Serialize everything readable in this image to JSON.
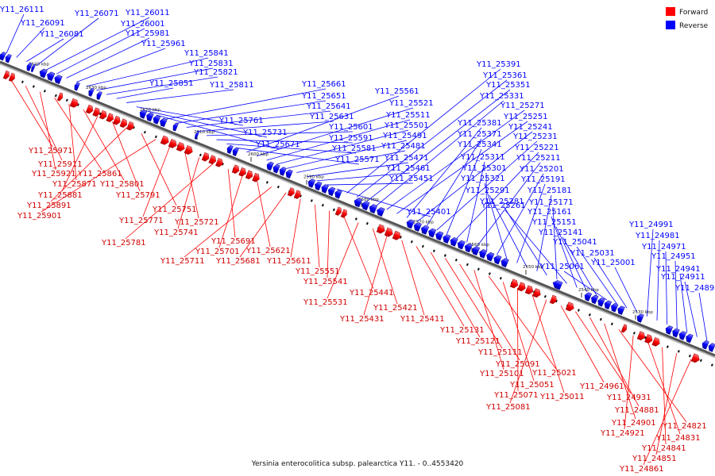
{
  "diagram": {
    "title": "Yersinia enterocolitica subsp. palearctica Y11. - 0..4553420",
    "legend": [
      {
        "label": "Forward",
        "color": "#ff0000"
      },
      {
        "label": "Reverse",
        "color": "#0000ff"
      }
    ],
    "kbp_ticks": [
      "2640 kbp",
      "2630 kbp",
      "2620 kbp",
      "2610 kbp",
      "2600 kbp",
      "2590 kbp",
      "2580 kbp",
      "2570 kbp",
      "2560 kbp",
      "2550 kbp",
      "2540 kbp",
      "2530 kbp"
    ],
    "reverse_genes": [
      "Y11_26111",
      "Y11_26091",
      "Y11_26081",
      "Y11_26071",
      "Y11_26011",
      "Y11_26001",
      "Y11_25981",
      "Y11_25961",
      "Y11_25841",
      "Y11_25831",
      "Y11_25821",
      "Y11_25851",
      "Y11_25811",
      "Y11_25761",
      "Y11_25731",
      "Y11_25671",
      "Y11_25661",
      "Y11_25651",
      "Y11_25641",
      "Y11_25631",
      "Y11_25601",
      "Y11_25591",
      "Y11_25581",
      "Y11_25571",
      "Y11_25561",
      "Y11_25521",
      "Y11_25511",
      "Y11_25501",
      "Y11_25491",
      "Y11_25481",
      "Y11_25471",
      "Y11_25461",
      "Y11_25451",
      "Y11_25401",
      "Y11_25391",
      "Y11_25361",
      "Y11_25351",
      "Y11_25331",
      "Y11_25271",
      "Y11_25251",
      "Y11_25381",
      "Y11_25241",
      "Y11_25371",
      "Y11_25231",
      "Y11_25341",
      "Y11_25221",
      "Y11_25311",
      "Y11_25211",
      "Y11_25301",
      "Y11_25201",
      "Y11_25321",
      "Y11_25191",
      "Y11_25291",
      "Y11_25181",
      "Y11_25281",
      "Y11_25171",
      "Y11_25261",
      "Y11_25161",
      "Y11_25151",
      "Y11_25141",
      "Y11_25061",
      "Y11_25041",
      "Y11_25031",
      "Y11_25001",
      "Y11_24991",
      "Y11_24981",
      "Y11_24971",
      "Y11_24951",
      "Y11_24941",
      "Y11_24911",
      "Y11_24891"
    ],
    "forward_genes": [
      "Y11_25971",
      "Y11_25911",
      "Y11_25921",
      "Y11_25861",
      "Y11_25871",
      "Y11_25801",
      "Y11_25881",
      "Y11_25791",
      "Y11_25891",
      "Y11_25751",
      "Y11_25901",
      "Y11_25771",
      "Y11_25721",
      "Y11_25741",
      "Y11_25781",
      "Y11_25691",
      "Y11_25701",
      "Y11_25621",
      "Y11_25711",
      "Y11_25681",
      "Y11_25611",
      "Y11_25551",
      "Y11_25541",
      "Y11_25441",
      "Y11_25531",
      "Y11_25421",
      "Y11_25431",
      "Y11_25411",
      "Y11_25131",
      "Y11_25121",
      "Y11_25111",
      "Y11_25091",
      "Y11_25101",
      "Y11_25021",
      "Y11_25051",
      "Y11_25071",
      "Y11_25011",
      "Y11_25081",
      "Y11_24961",
      "Y11_24931",
      "Y11_24881",
      "Y11_24901",
      "Y11_24821",
      "Y11_24921",
      "Y11_24831",
      "Y11_24841",
      "Y11_24851",
      "Y11_24861"
    ]
  }
}
